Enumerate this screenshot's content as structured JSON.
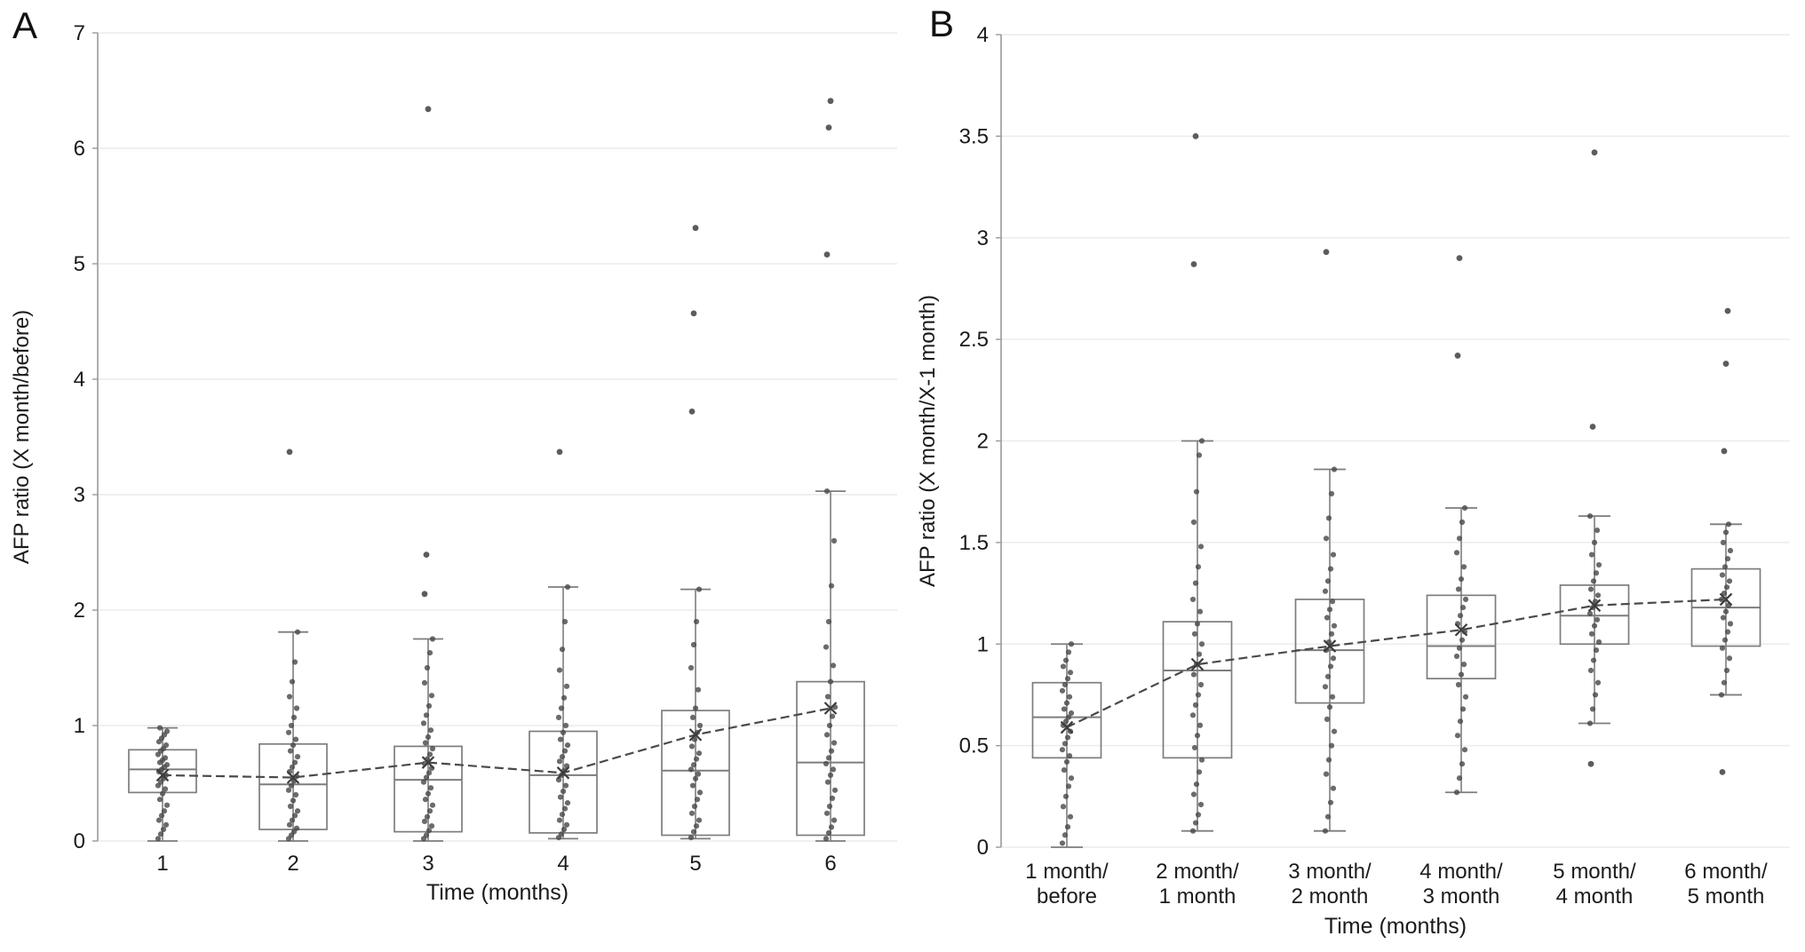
{
  "colors": {
    "background": "#ffffff",
    "gridline": "#ececec",
    "axis": "#9a9a9a",
    "box_stroke": "#7d7d7d",
    "point_fill": "#4a4a4a",
    "mean_line": "#4a4a4a",
    "text": "#1b1b1b"
  },
  "chart_data": [
    {
      "letter": "A",
      "type": "box",
      "ylabel": "AFP ratio (X month/before)",
      "xlabel": "Time (months)",
      "ylim": [
        0,
        7
      ],
      "yticks": [
        0,
        1,
        2,
        3,
        4,
        5,
        6,
        7
      ],
      "ytick_labels": [
        "0",
        "1",
        "2",
        "3",
        "4",
        "5",
        "6",
        "7"
      ],
      "grid": true,
      "legend": "none",
      "categories": [
        "1",
        "2",
        "3",
        "4",
        "5",
        "6"
      ],
      "boxes": [
        {
          "category": "1",
          "whisker_low": 0.0,
          "q1": 0.42,
          "median": 0.62,
          "q3": 0.79,
          "whisker_high": 0.98,
          "mean": 0.57,
          "outliers": [],
          "points": [
            0.02,
            0.06,
            0.1,
            0.14,
            0.18,
            0.22,
            0.26,
            0.31,
            0.36,
            0.41,
            0.45,
            0.48,
            0.51,
            0.54,
            0.57,
            0.6,
            0.62,
            0.64,
            0.66,
            0.68,
            0.7,
            0.72,
            0.75,
            0.78,
            0.8,
            0.83,
            0.86,
            0.89,
            0.92,
            0.95,
            0.98
          ]
        },
        {
          "category": "2",
          "whisker_low": 0.0,
          "q1": 0.1,
          "median": 0.49,
          "q3": 0.84,
          "whisker_high": 1.81,
          "mean": 0.55,
          "outliers": [
            3.37
          ],
          "points": [
            0.02,
            0.05,
            0.08,
            0.11,
            0.14,
            0.18,
            0.22,
            0.26,
            0.3,
            0.35,
            0.4,
            0.44,
            0.48,
            0.52,
            0.56,
            0.6,
            0.64,
            0.68,
            0.73,
            0.78,
            0.83,
            0.88,
            0.94,
            1.0,
            1.07,
            1.15,
            1.25,
            1.38,
            1.55,
            1.81
          ]
        },
        {
          "category": "3",
          "whisker_low": 0.0,
          "q1": 0.08,
          "median": 0.53,
          "q3": 0.82,
          "whisker_high": 1.75,
          "mean": 0.68,
          "outliers": [
            2.14,
            2.48,
            6.34
          ],
          "points": [
            0.02,
            0.05,
            0.09,
            0.13,
            0.17,
            0.21,
            0.26,
            0.31,
            0.36,
            0.41,
            0.46,
            0.51,
            0.55,
            0.59,
            0.63,
            0.67,
            0.71,
            0.75,
            0.8,
            0.85,
            0.9,
            0.96,
            1.02,
            1.09,
            1.17,
            1.26,
            1.37,
            1.5,
            1.63,
            1.75
          ]
        },
        {
          "category": "4",
          "whisker_low": 0.02,
          "q1": 0.07,
          "median": 0.57,
          "q3": 0.95,
          "whisker_high": 2.2,
          "mean": 0.59,
          "outliers": [
            3.37
          ],
          "points": [
            0.03,
            0.06,
            0.1,
            0.14,
            0.18,
            0.23,
            0.28,
            0.33,
            0.38,
            0.43,
            0.48,
            0.53,
            0.57,
            0.61,
            0.65,
            0.69,
            0.73,
            0.78,
            0.83,
            0.88,
            0.94,
            1.0,
            1.07,
            1.15,
            1.24,
            1.34,
            1.48,
            1.66,
            1.9,
            2.2
          ]
        },
        {
          "category": "5",
          "whisker_low": 0.02,
          "q1": 0.05,
          "median": 0.61,
          "q3": 1.13,
          "whisker_high": 2.18,
          "mean": 0.92,
          "outliers": [
            3.72,
            4.57,
            5.31
          ],
          "points": [
            0.03,
            0.08,
            0.13,
            0.18,
            0.24,
            0.3,
            0.36,
            0.42,
            0.48,
            0.54,
            0.58,
            0.62,
            0.66,
            0.71,
            0.76,
            0.82,
            0.88,
            0.94,
            1.0,
            1.07,
            1.15,
            1.31,
            1.5,
            1.7,
            1.9,
            2.18
          ]
        },
        {
          "category": "6",
          "whisker_low": 0.0,
          "q1": 0.05,
          "median": 0.68,
          "q3": 1.38,
          "whisker_high": 3.03,
          "mean": 1.15,
          "outliers": [
            5.08,
            6.18,
            6.41
          ],
          "points": [
            0.02,
            0.07,
            0.12,
            0.18,
            0.24,
            0.3,
            0.37,
            0.44,
            0.51,
            0.57,
            0.62,
            0.67,
            0.72,
            0.78,
            0.85,
            0.92,
            1.0,
            1.08,
            1.16,
            1.25,
            1.38,
            1.52,
            1.68,
            1.9,
            2.21,
            2.6,
            3.03
          ]
        }
      ]
    },
    {
      "letter": "B",
      "type": "box",
      "ylabel": "AFP ratio (X month/X-1 month)",
      "xlabel": "Time (months)",
      "ylim": [
        0,
        4
      ],
      "yticks": [
        0,
        0.5,
        1,
        1.5,
        2,
        2.5,
        3,
        3.5,
        4
      ],
      "ytick_labels": [
        "0",
        "0.5",
        "1",
        "1.5",
        "2",
        "2.5",
        "3",
        "3.5",
        "4"
      ],
      "grid": true,
      "legend": "none",
      "categories": [
        "1 month/\nbefore",
        "2 month/\n1 month",
        "3 month/\n2 month",
        "4 month/\n3 month",
        "5 month/\n4 month",
        "6 month/\n5 month"
      ],
      "boxes": [
        {
          "category": "1 month/before",
          "whisker_low": 0.0,
          "q1": 0.44,
          "median": 0.64,
          "q3": 0.81,
          "whisker_high": 1.0,
          "mean": 0.59,
          "outliers": [],
          "points": [
            0.02,
            0.06,
            0.1,
            0.15,
            0.2,
            0.25,
            0.3,
            0.34,
            0.38,
            0.42,
            0.45,
            0.48,
            0.51,
            0.54,
            0.57,
            0.6,
            0.62,
            0.64,
            0.66,
            0.68,
            0.71,
            0.74,
            0.77,
            0.8,
            0.83,
            0.86,
            0.89,
            0.92,
            0.96,
            1.0
          ]
        },
        {
          "category": "2 month/1 month",
          "whisker_low": 0.08,
          "q1": 0.44,
          "median": 0.87,
          "q3": 1.11,
          "whisker_high": 2.0,
          "mean": 0.9,
          "outliers": [
            2.87,
            3.5
          ],
          "points": [
            0.08,
            0.12,
            0.16,
            0.21,
            0.26,
            0.31,
            0.37,
            0.43,
            0.49,
            0.55,
            0.6,
            0.65,
            0.7,
            0.75,
            0.8,
            0.85,
            0.9,
            0.95,
            1.0,
            1.05,
            1.1,
            1.16,
            1.22,
            1.3,
            1.38,
            1.48,
            1.6,
            1.75,
            1.93,
            2.0
          ]
        },
        {
          "category": "3 month/2 month",
          "whisker_low": 0.08,
          "q1": 0.71,
          "median": 0.97,
          "q3": 1.22,
          "whisker_high": 1.86,
          "mean": 0.99,
          "outliers": [
            2.93
          ],
          "points": [
            0.08,
            0.15,
            0.22,
            0.29,
            0.36,
            0.43,
            0.5,
            0.57,
            0.63,
            0.69,
            0.74,
            0.79,
            0.84,
            0.89,
            0.93,
            0.97,
            1.01,
            1.05,
            1.09,
            1.13,
            1.17,
            1.21,
            1.26,
            1.31,
            1.37,
            1.44,
            1.52,
            1.62,
            1.74,
            1.86
          ]
        },
        {
          "category": "4 month/3 month",
          "whisker_low": 0.27,
          "q1": 0.83,
          "median": 0.99,
          "q3": 1.24,
          "whisker_high": 1.67,
          "mean": 1.07,
          "outliers": [
            2.42,
            2.9
          ],
          "points": [
            0.27,
            0.34,
            0.41,
            0.48,
            0.55,
            0.62,
            0.68,
            0.74,
            0.8,
            0.85,
            0.9,
            0.94,
            0.98,
            1.02,
            1.06,
            1.1,
            1.14,
            1.18,
            1.22,
            1.27,
            1.32,
            1.38,
            1.45,
            1.52,
            1.6,
            1.67
          ]
        },
        {
          "category": "5 month/4 month",
          "whisker_low": 0.61,
          "q1": 1.0,
          "median": 1.14,
          "q3": 1.29,
          "whisker_high": 1.63,
          "mean": 1.19,
          "outliers": [
            0.41,
            2.07,
            3.42
          ],
          "points": [
            0.61,
            0.68,
            0.75,
            0.81,
            0.87,
            0.92,
            0.97,
            1.01,
            1.05,
            1.09,
            1.12,
            1.15,
            1.18,
            1.21,
            1.24,
            1.27,
            1.31,
            1.35,
            1.39,
            1.44,
            1.5,
            1.56,
            1.63
          ]
        },
        {
          "category": "6 month/5 month",
          "whisker_low": 0.75,
          "q1": 0.99,
          "median": 1.18,
          "q3": 1.37,
          "whisker_high": 1.59,
          "mean": 1.22,
          "outliers": [
            0.37,
            1.95,
            2.38,
            2.64
          ],
          "points": [
            0.75,
            0.81,
            0.87,
            0.93,
            0.98,
            1.02,
            1.06,
            1.1,
            1.13,
            1.16,
            1.19,
            1.22,
            1.25,
            1.28,
            1.31,
            1.34,
            1.38,
            1.42,
            1.46,
            1.5,
            1.55,
            1.59
          ]
        }
      ]
    }
  ]
}
